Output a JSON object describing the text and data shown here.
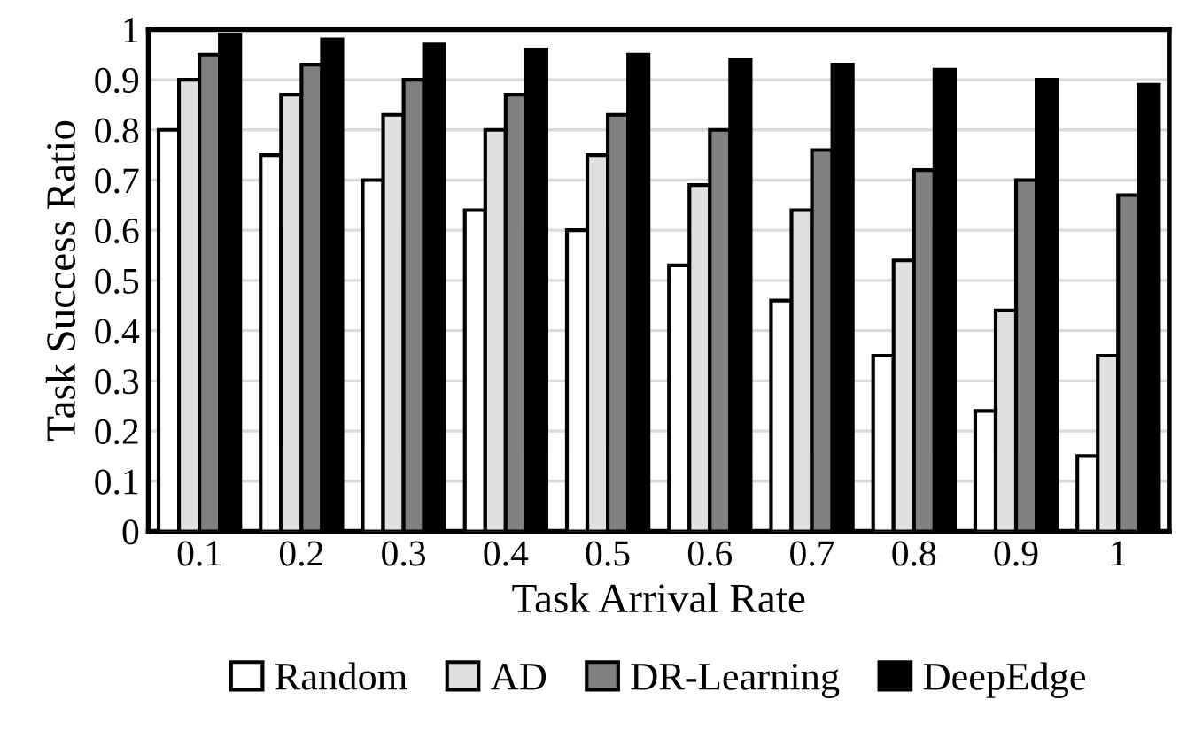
{
  "chart_data": {
    "type": "bar",
    "xlabel": "Task Arrival Rate",
    "ylabel": "Task Success Ratio",
    "categories": [
      "0.1",
      "0.2",
      "0.3",
      "0.4",
      "0.5",
      "0.6",
      "0.7",
      "0.8",
      "0.9",
      "1"
    ],
    "series": [
      {
        "name": "Random",
        "color": "#ffffff",
        "values": [
          0.8,
          0.75,
          0.7,
          0.64,
          0.6,
          0.53,
          0.46,
          0.35,
          0.24,
          0.15
        ]
      },
      {
        "name": "AD",
        "color": "#e0e0e0",
        "values": [
          0.9,
          0.87,
          0.83,
          0.8,
          0.75,
          0.69,
          0.64,
          0.54,
          0.44,
          0.35
        ]
      },
      {
        "name": "DR-Learning",
        "color": "#808080",
        "values": [
          0.95,
          0.93,
          0.9,
          0.87,
          0.83,
          0.8,
          0.76,
          0.72,
          0.7,
          0.67
        ]
      },
      {
        "name": "DeepEdge",
        "color": "#000000",
        "values": [
          0.99,
          0.98,
          0.97,
          0.96,
          0.95,
          0.94,
          0.93,
          0.92,
          0.9,
          0.89
        ]
      }
    ],
    "ylim": [
      0,
      1
    ],
    "yticks": [
      0,
      0.1,
      0.2,
      0.3,
      0.4,
      0.5,
      0.6,
      0.7,
      0.8,
      0.9,
      1
    ],
    "grid": "y",
    "legend": "bottom"
  }
}
